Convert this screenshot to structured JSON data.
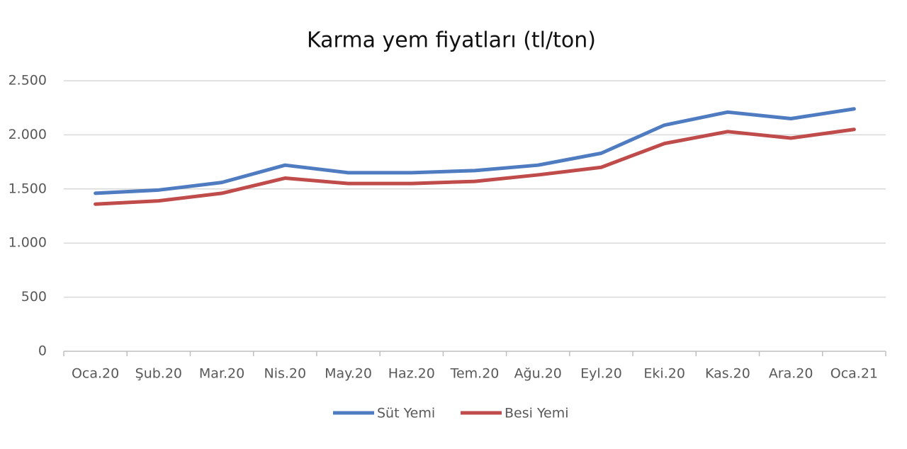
{
  "chart_data": {
    "type": "line",
    "title": "Karma yem fiyatları (tl/ton)",
    "categories": [
      "Oca.20",
      "Şub.20",
      "Mar.20",
      "Nis.20",
      "May.20",
      "Haz.20",
      "Tem.20",
      "Ağu.20",
      "Eyl.20",
      "Eki.20",
      "Kas.20",
      "Ara.20",
      "Oca.21"
    ],
    "series": [
      {
        "name": "Süt Yemi",
        "color": "#4f7cc0",
        "values": [
          1460,
          1490,
          1560,
          1720,
          1650,
          1650,
          1670,
          1720,
          1830,
          2090,
          2210,
          2150,
          2240
        ]
      },
      {
        "name": "Besi Yemi",
        "color": "#bf4b4b",
        "values": [
          1360,
          1390,
          1460,
          1600,
          1550,
          1550,
          1570,
          1630,
          1700,
          1920,
          2030,
          1970,
          2050
        ]
      }
    ],
    "ylim": [
      0,
      2500
    ],
    "yticks": [
      0,
      500,
      {
        "value": 1000,
        "label": "1.000"
      },
      {
        "value": 1500,
        "label": "1.500"
      },
      {
        "value": 2000,
        "label": "2.000"
      },
      {
        "value": 2500,
        "label": "2.500"
      }
    ],
    "grid": true,
    "legend": "bottom"
  }
}
